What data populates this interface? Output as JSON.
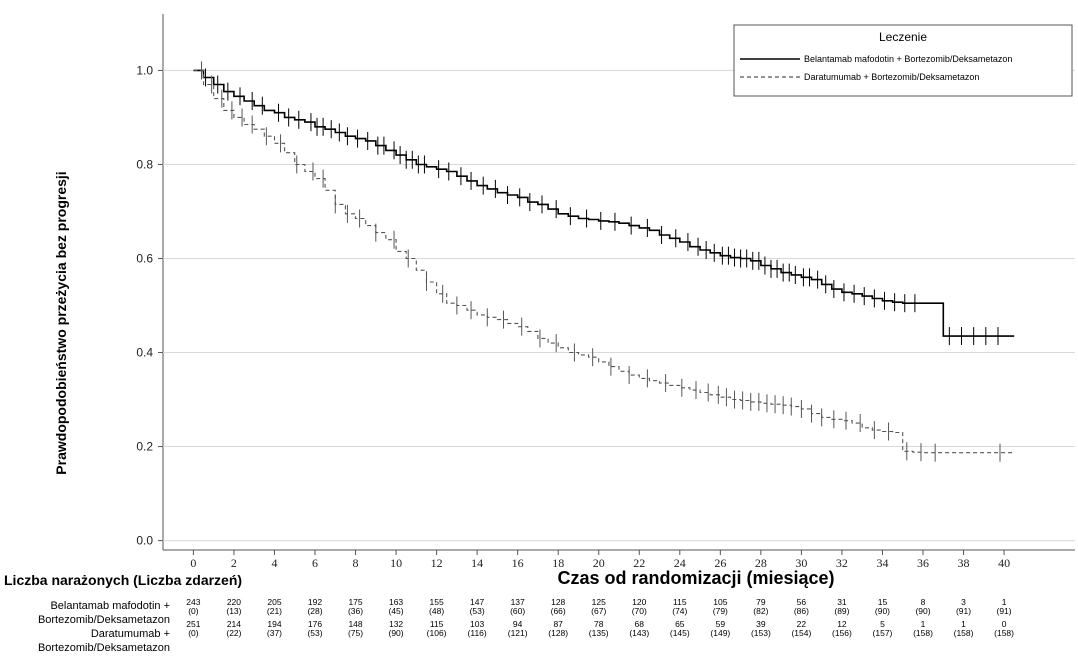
{
  "chart_data": {
    "type": "line",
    "subtype": "kaplan-meier",
    "ylabel": "Prawdopodobieństwo przeżycia bez progresji",
    "xlabel": "Czas od randomizacji (miesiące)",
    "xlim": [
      -1.5,
      43.5
    ],
    "ylim": [
      -0.02,
      1.12
    ],
    "x_ticks": [
      0,
      2,
      4,
      6,
      8,
      10,
      12,
      14,
      16,
      18,
      20,
      22,
      24,
      26,
      28,
      30,
      32,
      34,
      36,
      38,
      40
    ],
    "y_ticks": [
      "0.0",
      "0.2",
      "0.4",
      "0.6",
      "0.8",
      "1.0"
    ],
    "y_tick_values": [
      0.0,
      0.2,
      0.4,
      0.6,
      0.8,
      1.0
    ],
    "grid": "horizontal",
    "legend": {
      "title": "Leczenie",
      "position": "top-right",
      "entries": [
        {
          "label": "Belantamab mafodotin + Bortezomib/Deksametazon",
          "style": "solid",
          "color": "#000000"
        },
        {
          "label": "Daratumumab + Bortezomib/Deksametazon",
          "style": "dashed",
          "color": "#555555"
        }
      ]
    },
    "series": [
      {
        "name": "Belantamab mafodotin + Bortezomib/Deksametazon",
        "style": "solid",
        "color": "#000000",
        "x": [
          0,
          0.5,
          1,
          1.5,
          2,
          2.5,
          3,
          3.5,
          4,
          4.5,
          5,
          5.5,
          6,
          6.5,
          7,
          7.5,
          8,
          8.5,
          9,
          9.5,
          10,
          10.5,
          11,
          11.5,
          12,
          12.5,
          13,
          13.5,
          14,
          14.5,
          15,
          15.5,
          16,
          16.5,
          17,
          17.5,
          18,
          18.5,
          19,
          19.5,
          20,
          20.5,
          21,
          21.5,
          22,
          22.5,
          23,
          23.5,
          24,
          24.5,
          25,
          25.5,
          26,
          26.5,
          27,
          27.5,
          28,
          28.5,
          29,
          29.5,
          30,
          30.5,
          31,
          31.5,
          32,
          32.5,
          33,
          33.5,
          34,
          34.5,
          35,
          35.5,
          36,
          36.5,
          37,
          38,
          39,
          40,
          40.5
        ],
        "y": [
          1.0,
          0.985,
          0.97,
          0.955,
          0.945,
          0.935,
          0.925,
          0.915,
          0.91,
          0.9,
          0.895,
          0.89,
          0.88,
          0.875,
          0.868,
          0.86,
          0.855,
          0.85,
          0.84,
          0.83,
          0.82,
          0.81,
          0.8,
          0.795,
          0.79,
          0.785,
          0.775,
          0.765,
          0.755,
          0.748,
          0.74,
          0.735,
          0.73,
          0.72,
          0.715,
          0.705,
          0.695,
          0.69,
          0.685,
          0.683,
          0.68,
          0.678,
          0.675,
          0.67,
          0.665,
          0.66,
          0.65,
          0.643,
          0.635,
          0.625,
          0.618,
          0.612,
          0.606,
          0.602,
          0.6,
          0.595,
          0.585,
          0.578,
          0.57,
          0.565,
          0.56,
          0.555,
          0.545,
          0.535,
          0.528,
          0.525,
          0.52,
          0.515,
          0.51,
          0.507,
          0.505,
          0.505,
          0.505,
          0.505,
          0.435,
          0.435,
          0.435,
          0.435,
          0.435
        ],
        "censored": [
          0.6,
          1.2,
          1.7,
          2.3,
          2.9,
          3.4,
          4.2,
          4.7,
          5.2,
          5.8,
          6.1,
          6.4,
          6.8,
          7.2,
          7.6,
          8.1,
          8.6,
          9.1,
          9.4,
          9.9,
          10.2,
          10.5,
          10.8,
          11.1,
          11.4,
          12.1,
          12.6,
          13.2,
          13.7,
          14.3,
          14.9,
          15.5,
          16.1,
          16.6,
          17.2,
          17.9,
          18.6,
          19.4,
          20.1,
          20.8,
          21.6,
          22.4,
          23.1,
          23.8,
          24.4,
          24.9,
          25.3,
          25.7,
          26.1,
          26.4,
          26.7,
          27.0,
          27.3,
          27.6,
          27.9,
          28.2,
          28.5,
          28.8,
          29.1,
          29.4,
          29.7,
          30.1,
          30.4,
          30.8,
          31.2,
          31.6,
          32.1,
          32.6,
          33.1,
          33.6,
          34.1,
          34.6,
          35.1,
          35.6,
          37.3,
          37.9,
          38.5,
          39.1,
          39.7
        ]
      },
      {
        "name": "Daratumumab + Bortezomib/Deksametazon",
        "style": "dashed",
        "color": "#555555",
        "x": [
          0,
          0.5,
          1,
          1.5,
          2,
          2.5,
          3,
          3.5,
          4,
          4.5,
          5,
          5.5,
          6,
          6.5,
          7,
          7.5,
          8,
          8.5,
          9,
          9.5,
          10,
          10.5,
          11,
          11.5,
          12,
          12.5,
          13,
          13.5,
          14,
          14.5,
          15,
          15.5,
          16,
          16.5,
          17,
          17.5,
          18,
          18.5,
          19,
          19.5,
          20,
          20.5,
          21,
          21.5,
          22,
          22.5,
          23,
          23.5,
          24,
          24.5,
          25,
          25.5,
          26,
          26.5,
          27,
          27.5,
          28,
          28.5,
          29,
          29.5,
          30,
          30.5,
          31,
          31.5,
          32,
          32.5,
          33,
          33.5,
          34,
          34.5,
          35,
          35.5,
          36,
          37,
          38,
          39,
          40,
          40.5
        ],
        "y": [
          1.0,
          0.97,
          0.94,
          0.915,
          0.9,
          0.885,
          0.875,
          0.86,
          0.845,
          0.825,
          0.8,
          0.785,
          0.77,
          0.745,
          0.715,
          0.695,
          0.685,
          0.67,
          0.655,
          0.64,
          0.615,
          0.6,
          0.575,
          0.55,
          0.525,
          0.505,
          0.5,
          0.49,
          0.48,
          0.475,
          0.47,
          0.462,
          0.455,
          0.445,
          0.43,
          0.42,
          0.41,
          0.4,
          0.395,
          0.39,
          0.38,
          0.37,
          0.36,
          0.352,
          0.345,
          0.34,
          0.335,
          0.33,
          0.325,
          0.32,
          0.315,
          0.31,
          0.305,
          0.3,
          0.298,
          0.295,
          0.292,
          0.29,
          0.288,
          0.285,
          0.28,
          0.27,
          0.262,
          0.258,
          0.255,
          0.25,
          0.24,
          0.235,
          0.232,
          0.23,
          0.19,
          0.188,
          0.187,
          0.187,
          0.187,
          0.187,
          0.187,
          0.187
        ],
        "censored": [
          0.4,
          0.9,
          1.4,
          1.9,
          2.4,
          2.9,
          3.6,
          4.3,
          5.1,
          5.9,
          6.4,
          7.0,
          7.6,
          8.2,
          9.0,
          9.9,
          10.6,
          11.5,
          12.3,
          13.0,
          13.7,
          14.5,
          15.3,
          16.2,
          17.1,
          17.9,
          18.8,
          19.7,
          20.6,
          21.5,
          22.4,
          23.3,
          24.1,
          24.8,
          25.4,
          25.9,
          26.3,
          26.7,
          27.1,
          27.5,
          27.9,
          28.3,
          28.7,
          29.1,
          29.5,
          30.0,
          30.5,
          31.0,
          31.6,
          32.2,
          32.9,
          33.6,
          34.3,
          35.2,
          35.9,
          36.6,
          39.8
        ]
      }
    ]
  },
  "risk_table": {
    "title": "Liczba narażonych (Liczba zdarzeń)",
    "rows": [
      {
        "label_line1": "Belantamab mafodotin +",
        "label_line2": "Bortezomib/Deksametazon",
        "counts": [
          "243",
          "220",
          "205",
          "192",
          "175",
          "163",
          "155",
          "147",
          "137",
          "128",
          "125",
          "120",
          "115",
          "105",
          "79",
          "56",
          "31",
          "15",
          "8",
          "3",
          "1"
        ],
        "events": [
          "(0)",
          "(13)",
          "(21)",
          "(28)",
          "(36)",
          "(45)",
          "(48)",
          "(53)",
          "(60)",
          "(66)",
          "(67)",
          "(70)",
          "(74)",
          "(79)",
          "(82)",
          "(86)",
          "(89)",
          "(90)",
          "(90)",
          "(91)",
          "(91)"
        ]
      },
      {
        "label_line1": "Daratumumab +",
        "label_line2": "Bortezomib/Deksametazon",
        "counts": [
          "251",
          "214",
          "194",
          "176",
          "148",
          "132",
          "115",
          "103",
          "94",
          "87",
          "78",
          "68",
          "65",
          "59",
          "39",
          "22",
          "12",
          "5",
          "1",
          "1",
          "0"
        ],
        "events": [
          "(0)",
          "(22)",
          "(37)",
          "(53)",
          "(75)",
          "(90)",
          "(106)",
          "(116)",
          "(121)",
          "(128)",
          "(135)",
          "(143)",
          "(145)",
          "(149)",
          "(153)",
          "(154)",
          "(156)",
          "(157)",
          "(158)",
          "(158)",
          "(158)"
        ]
      }
    ]
  }
}
